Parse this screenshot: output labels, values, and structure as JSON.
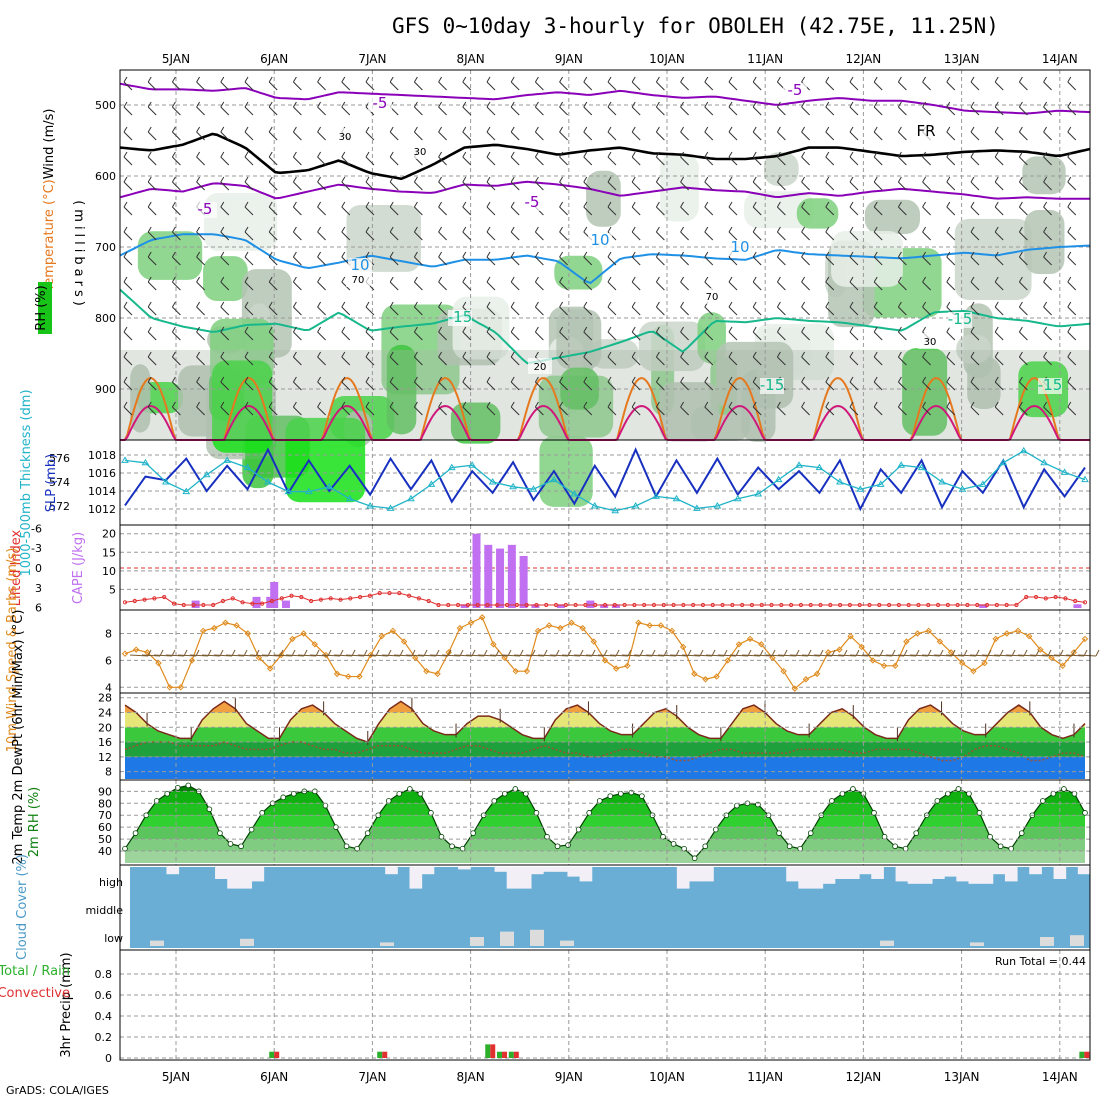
{
  "title": "GFS 0~10day 3-hourly for OBOLEH (42.75E, 11.25N)",
  "credit": "GrADS: COLA/IGES",
  "dates": [
    "5JAN",
    "6JAN",
    "7JAN",
    "8JAN",
    "9JAN",
    "10JAN",
    "11JAN",
    "12JAN",
    "13JAN",
    "14JAN"
  ],
  "colors": {
    "purple": "#8a00b8",
    "black": "#000000",
    "blue": "#1e90e6",
    "teal": "#16b88c",
    "orange": "#e6781e",
    "magenta": "#d0187a",
    "slp": "#1830c0",
    "thick": "#20b4c8",
    "cape": "#c070f0",
    "li": "#e03030",
    "wind": "#e08a1c",
    "barb": "#7a5a30",
    "cloud": "#6aaed6",
    "cloudfill": "#f2f0f6"
  },
  "chart_data": [
    {
      "type": "heatmap",
      "name": "upper-air-cross-section",
      "ylabel_parts": [
        "Wind (m/s)",
        "Temperature (°C)",
        "RH (%)",
        "(millibars)"
      ],
      "ylim": [
        450,
        970
      ],
      "yticks": [
        500,
        600,
        700,
        800,
        900
      ],
      "contour_labels": [
        "-5",
        "-5",
        "FR",
        "-5",
        "-5",
        "10",
        "10",
        "-15",
        "-15",
        "-15",
        "-15",
        "10",
        "30",
        "30",
        "70",
        "70",
        "30",
        "20"
      ],
      "isotherms": [
        {
          "label": "-5 (upper)",
          "color": "purple",
          "p": [
            470,
            478,
            478,
            480,
            476,
            490,
            492,
            482,
            484,
            486,
            488,
            490,
            492,
            486,
            482,
            486,
            480,
            486,
            490,
            488,
            494,
            500,
            494,
            490,
            494,
            494,
            500,
            508,
            510,
            512,
            508,
            510
          ]
        },
        {
          "label": "FR",
          "color": "black",
          "p": [
            560,
            564,
            556,
            540,
            560,
            596,
            592,
            578,
            596,
            604,
            584,
            560,
            556,
            562,
            570,
            564,
            560,
            568,
            570,
            576,
            576,
            572,
            560,
            560,
            566,
            572,
            570,
            566,
            564,
            566,
            572,
            562
          ]
        },
        {
          "label": "-5 (lower)",
          "color": "purple",
          "p": [
            630,
            618,
            622,
            610,
            614,
            632,
            622,
            612,
            618,
            622,
            624,
            612,
            614,
            608,
            612,
            618,
            628,
            622,
            616,
            620,
            622,
            630,
            624,
            628,
            622,
            618,
            622,
            626,
            632,
            630,
            632,
            632
          ]
        },
        {
          "label": "10",
          "color": "blue",
          "p": [
            712,
            690,
            682,
            682,
            690,
            718,
            730,
            722,
            712,
            720,
            728,
            718,
            718,
            712,
            720,
            752,
            716,
            710,
            712,
            716,
            718,
            704,
            710,
            712,
            714,
            716,
            712,
            708,
            712,
            704,
            700,
            698
          ]
        },
        {
          "label": "-15",
          "color": "teal",
          "p": [
            760,
            800,
            812,
            820,
            810,
            808,
            818,
            792,
            818,
            812,
            808,
            796,
            820,
            864,
            856,
            848,
            834,
            818,
            848,
            804,
            806,
            800,
            804,
            806,
            812,
            818,
            792,
            790,
            800,
            804,
            812,
            808
          ]
        }
      ]
    },
    {
      "type": "line",
      "name": "slp-thickness",
      "ylabel_left": "1000-500mb Thickness (dm)",
      "ylabel_right": "SLP (mb)",
      "ylim_left": [
        571,
        577
      ],
      "ylim_right": [
        1011,
        1019
      ],
      "yticks_left": [
        572,
        574,
        576
      ],
      "yticks_right": [
        1012,
        1014,
        1016,
        1018
      ],
      "series": [
        {
          "name": "SLP",
          "axis": "right",
          "values": [
            1012.4,
            1015.6,
            1015.2,
            1017.6,
            1014.0,
            1016.8,
            1014.2,
            1018.6,
            1013.8,
            1017.4,
            1014.0,
            1016.8,
            1013.6,
            1017.6,
            1014.2,
            1017.4,
            1012.8,
            1016.2,
            1013.8,
            1017.2,
            1013.0,
            1016.2,
            1012.6,
            1016.8,
            1013.4,
            1018.6,
            1013.4,
            1017.4,
            1013.8,
            1017.6,
            1013.6,
            1016.6,
            1014.2,
            1016.2,
            1013.8,
            1017.4,
            1012.0,
            1016.4,
            1013.8,
            1017.4,
            1012.2,
            1016.2,
            1013.8,
            1017.4,
            1012.2,
            1016.4,
            1013.4,
            1016.6
          ]
        },
        {
          "name": "Thickness",
          "axis": "left",
          "values": [
            575.8,
            575.6,
            574.0,
            573.2,
            574.6,
            575.8,
            575.2,
            574.0,
            573.2,
            573.2,
            573.6,
            572.6,
            572.0,
            571.8,
            572.6,
            573.8,
            575.2,
            575.4,
            574.0,
            573.6,
            573.4,
            574.2,
            573.0,
            572.0,
            571.6,
            572.0,
            572.8,
            572.6,
            571.8,
            572.0,
            572.6,
            573.0,
            574.2,
            575.4,
            575.2,
            574.0,
            573.4,
            573.8,
            575.4,
            575.2,
            574.0,
            573.4,
            573.8,
            575.6,
            576.6,
            575.6,
            574.8,
            574.2
          ]
        }
      ]
    },
    {
      "type": "bar",
      "name": "cape-lifted-index",
      "ylabel_left": "Lifted Index",
      "ylabel_right": "CAPE (J/kg)",
      "ylim_left": [
        6,
        -6
      ],
      "yticks_left": [
        "-6",
        "-3",
        "0",
        "3",
        "6"
      ],
      "ylim_right": [
        0,
        21
      ],
      "yticks_right": [
        5,
        10,
        15,
        20
      ],
      "cape_bars": [
        {
          "t": 5.2,
          "v": 2
        },
        {
          "t": 5.82,
          "v": 3
        },
        {
          "t": 5.96,
          "v": 3
        },
        {
          "t": 6.0,
          "v": 7
        },
        {
          "t": 6.12,
          "v": 2
        },
        {
          "t": 7.94,
          "v": 1
        },
        {
          "t": 8.06,
          "v": 20
        },
        {
          "t": 8.18,
          "v": 17
        },
        {
          "t": 8.3,
          "v": 16
        },
        {
          "t": 8.42,
          "v": 17
        },
        {
          "t": 8.54,
          "v": 14
        },
        {
          "t": 8.66,
          "v": 1
        },
        {
          "t": 8.92,
          "v": 1
        },
        {
          "t": 9.22,
          "v": 2
        },
        {
          "t": 9.36,
          "v": 1
        },
        {
          "t": 9.48,
          "v": 1
        },
        {
          "t": 13.22,
          "v": 1
        },
        {
          "t": 14.18,
          "v": 1
        }
      ],
      "lifted_index": [
        5.2,
        5.0,
        4.8,
        4.6,
        4.4,
        5.4,
        5.6,
        5.6,
        5.6,
        5.6,
        5.0,
        4.6,
        5.2,
        5.4,
        5.4,
        5.0,
        4.6,
        4.2,
        4.4,
        5.0,
        4.8,
        4.6,
        4.8,
        4.6,
        4.4,
        4.2,
        3.8,
        3.8,
        3.8,
        4.2,
        4.6,
        5.0,
        5.6,
        5.6,
        5.6,
        5.6,
        5.6,
        5.6,
        5.6,
        5.6,
        5.6,
        5.6,
        5.6,
        5.6,
        5.6,
        5.6,
        5.6,
        5.6,
        5.6,
        5.6,
        5.6,
        5.6,
        5.6,
        5.6,
        5.6,
        5.6,
        5.6,
        5.6,
        5.6,
        5.6,
        5.6,
        5.6,
        5.6,
        5.6,
        5.6,
        5.6,
        5.6,
        5.6,
        5.6,
        5.6,
        5.6,
        5.6,
        5.6,
        5.6,
        5.6,
        5.6,
        5.6,
        5.6,
        5.6,
        5.6,
        5.6,
        5.6,
        5.6,
        5.6,
        5.6,
        5.6,
        5.6,
        5.6,
        5.6,
        5.6,
        5.6,
        5.6,
        4.4,
        4.4,
        4.6,
        4.4,
        4.6,
        5.0,
        5.2
      ]
    },
    {
      "type": "line",
      "name": "10m-wind",
      "ylabel": "10m Wind Speed & Barbs (m/s)",
      "ylim": [
        3.8,
        9.6
      ],
      "yticks": [
        4,
        6,
        8
      ],
      "values": [
        6.5,
        6.8,
        6.6,
        5.8,
        4.0,
        4.0,
        6.0,
        8.2,
        8.4,
        8.8,
        8.6,
        8.0,
        6.2,
        5.4,
        6.4,
        7.6,
        8.0,
        7.2,
        6.4,
        5.0,
        4.8,
        4.8,
        6.4,
        7.8,
        8.2,
        7.4,
        6.2,
        5.2,
        5.0,
        6.6,
        8.4,
        8.8,
        9.2,
        7.2,
        6.2,
        5.2,
        5.2,
        8.2,
        8.6,
        8.4,
        8.8,
        8.4,
        7.4,
        6.0,
        5.4,
        5.6,
        8.8,
        8.6,
        8.6,
        8.2,
        7.0,
        5.0,
        4.6,
        4.8,
        6.0,
        7.2,
        7.6,
        7.2,
        6.2,
        5.2,
        3.9,
        4.6,
        5.0,
        6.6,
        6.8,
        7.8,
        7.0,
        6.0,
        5.6,
        5.6,
        7.4,
        8.0,
        8.2,
        7.4,
        6.6,
        5.8,
        5.2,
        5.8,
        7.6,
        8.0,
        8.2,
        7.8,
        6.8,
        6.2,
        5.6,
        6.6,
        7.6
      ]
    },
    {
      "type": "area",
      "name": "2m-temperature",
      "ylabel": "2m Temp 2m DewPt (6hr Min/Max) (°C)",
      "ylim": [
        6,
        29
      ],
      "yticks": [
        8,
        12,
        16,
        20,
        24,
        28
      ],
      "temperature": [
        26,
        24,
        21,
        19,
        18,
        17,
        17,
        22,
        25,
        27,
        25,
        21,
        19,
        17,
        17,
        22,
        25,
        26,
        24,
        21,
        19,
        17,
        16,
        21,
        25,
        27,
        25,
        21,
        19,
        18,
        18,
        21,
        23,
        23,
        22,
        20,
        18,
        17,
        17,
        22,
        25,
        26,
        24,
        21,
        19,
        18,
        18,
        21,
        24,
        25,
        23,
        20,
        18,
        17,
        17,
        21,
        25,
        26,
        24,
        21,
        19,
        18,
        18,
        21,
        24,
        25,
        23,
        20,
        18,
        17,
        17,
        22,
        25,
        26,
        24,
        21,
        19,
        18,
        18,
        21,
        24,
        26,
        24,
        20,
        18,
        17,
        18,
        21
      ],
      "dewpoint": [
        14,
        15,
        16,
        16,
        16,
        15,
        15,
        15,
        15,
        16,
        15,
        14,
        14,
        14,
        15,
        16,
        16,
        15,
        14,
        14,
        13,
        13,
        14,
        15,
        15,
        15,
        14,
        13,
        13,
        13,
        14,
        15,
        15,
        14,
        13,
        13,
        13,
        14,
        15,
        14,
        13,
        13,
        12,
        12,
        13,
        14,
        14,
        13,
        12,
        12,
        11,
        11,
        12,
        13,
        14,
        14,
        13,
        13,
        13,
        13,
        13,
        14,
        14,
        14,
        14,
        14,
        13,
        13,
        14,
        14,
        14,
        14,
        13,
        12,
        11,
        11,
        12,
        14,
        15,
        15,
        14,
        13,
        11,
        11,
        12,
        13,
        13,
        12
      ]
    },
    {
      "type": "area",
      "name": "2m-rh",
      "ylabel": "2m RH (%)",
      "ylim": [
        30,
        97
      ],
      "yticks": [
        40,
        50,
        60,
        70,
        80,
        90
      ],
      "values": [
        42,
        55,
        70,
        82,
        88,
        93,
        95,
        90,
        75,
        55,
        46,
        44,
        58,
        72,
        80,
        85,
        88,
        90,
        90,
        78,
        60,
        44,
        42,
        55,
        70,
        82,
        88,
        92,
        88,
        72,
        52,
        44,
        42,
        55,
        70,
        82,
        88,
        92,
        88,
        72,
        52,
        44,
        45,
        58,
        72,
        82,
        86,
        88,
        89,
        86,
        70,
        52,
        46,
        42,
        34,
        44,
        58,
        70,
        78,
        80,
        79,
        70,
        55,
        44,
        42,
        55,
        70,
        82,
        88,
        92,
        88,
        72,
        52,
        44,
        42,
        55,
        70,
        82,
        88,
        92,
        88,
        72,
        52,
        44,
        42,
        55,
        70,
        82,
        88,
        92,
        88,
        72
      ]
    },
    {
      "type": "bar",
      "name": "cloud-cover",
      "ylabel": "Cloud Cover (%)",
      "ylabels": [
        "high",
        "middle",
        "low"
      ],
      "high": [
        0,
        0,
        0,
        0.3,
        0,
        0,
        0,
        0.5,
        0.9,
        0.9,
        0.6,
        0,
        0,
        0,
        0,
        0,
        0,
        0,
        0,
        0,
        0,
        0.3,
        0,
        0.9,
        0.3,
        0,
        0,
        0.1,
        0,
        0,
        0.2,
        0.9,
        0.9,
        0.3,
        0.2,
        0.2,
        0.4,
        0.6,
        0,
        0,
        0,
        0,
        0,
        0,
        0,
        0.9,
        0.6,
        0.6,
        0,
        0,
        0,
        0,
        0,
        0,
        0.6,
        0.9,
        0.9,
        0.7,
        0.5,
        0.5,
        0.3,
        0.5,
        0,
        0.6,
        0.7,
        0.7,
        0.5,
        0.4,
        0.6,
        0.7,
        0.7,
        0.3,
        0.6,
        0,
        0.3,
        0,
        0.5,
        0,
        0.3
      ]
    },
    {
      "type": "bar",
      "name": "3hr-precip",
      "ylabel": "3hr Precip (mm) Total / Rain Convective",
      "ylim": [
        0,
        1
      ],
      "yticks": [
        0,
        0.2,
        0.4,
        0.6,
        0.8
      ],
      "run_total": "Run Total = 0.44",
      "bars": [
        {
          "t": 6.0,
          "v": 0.06
        },
        {
          "t": 7.1,
          "v": 0.06
        },
        {
          "t": 8.2,
          "v": 0.13
        },
        {
          "t": 8.32,
          "v": 0.06
        },
        {
          "t": 8.44,
          "v": 0.06
        },
        {
          "t": 14.25,
          "v": 0.06
        }
      ]
    }
  ]
}
